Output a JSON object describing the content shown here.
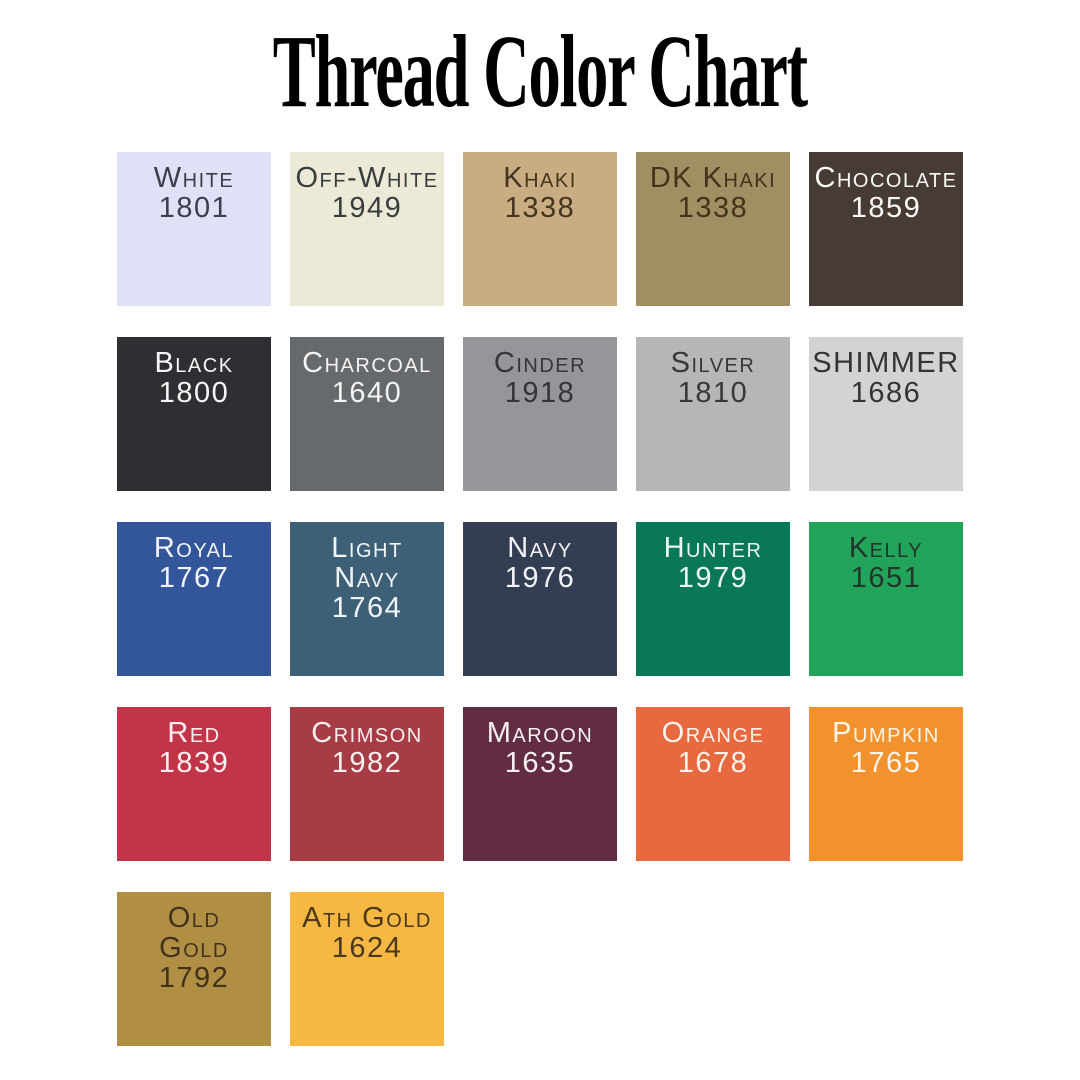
{
  "page": {
    "title": "Thread Color Chart",
    "background": "#ffffff",
    "title_color": "#000000"
  },
  "chart_data": {
    "type": "table",
    "title": "Thread Color Chart",
    "columns": 5,
    "legend_position": "none",
    "swatches": [
      {
        "name_lines": [
          "White"
        ],
        "code": "1801",
        "bg": "#dfe2f6",
        "fg": "#3c3f4a"
      },
      {
        "name_lines": [
          "Off-White"
        ],
        "code": "1949",
        "bg": "#ece9d6",
        "fg": "#3a3d40"
      },
      {
        "name_lines": [
          "Khaki"
        ],
        "code": "1338",
        "bg": "#c9ad82",
        "fg": "#45341f"
      },
      {
        "name_lines": [
          "DK Khaki"
        ],
        "code": "1338",
        "bg": "#a18e63",
        "fg": "#42331c"
      },
      {
        "name_lines": [
          "Chocolate"
        ],
        "code": "1859",
        "bg": "#473b36",
        "fg": "#fbfaf6"
      },
      {
        "name_lines": [
          "Black"
        ],
        "code": "1800",
        "bg": "#2e2f33",
        "fg": "#f6f6f6"
      },
      {
        "name_lines": [
          "Charcoal"
        ],
        "code": "1640",
        "bg": "#666a6c",
        "fg": "#f4f4f4"
      },
      {
        "name_lines": [
          "Cinder"
        ],
        "code": "1918",
        "bg": "#94969a",
        "fg": "#333539"
      },
      {
        "name_lines": [
          "Silver"
        ],
        "code": "1810",
        "bg": "#b5b7b6",
        "fg": "#35373b"
      },
      {
        "name_lines": [
          "SHIMMER"
        ],
        "code": "1686",
        "bg": "#d2d3d2",
        "fg": "#323438"
      },
      {
        "name_lines": [
          "Royal"
        ],
        "code": "1767",
        "bg": "#33569b",
        "fg": "#f3f5fa"
      },
      {
        "name_lines": [
          "Light",
          "Navy"
        ],
        "code": "1764",
        "bg": "#3e6077",
        "fg": "#f2f6f8"
      },
      {
        "name_lines": [
          "Navy"
        ],
        "code": "1976",
        "bg": "#333e52",
        "fg": "#f2f4f7"
      },
      {
        "name_lines": [
          "Hunter"
        ],
        "code": "1979",
        "bg": "#087859",
        "fg": "#ecf7f1"
      },
      {
        "name_lines": [
          "Kelly"
        ],
        "code": "1651",
        "bg": "#22a35a",
        "fg": "#21362a"
      },
      {
        "name_lines": [
          "Red"
        ],
        "code": "1839",
        "bg": "#c23549",
        "fg": "#faf0f1"
      },
      {
        "name_lines": [
          "Crimson"
        ],
        "code": "1982",
        "bg": "#a73c44",
        "fg": "#f8eff0"
      },
      {
        "name_lines": [
          "Maroon"
        ],
        "code": "1635",
        "bg": "#622c42",
        "fg": "#f7f0f2"
      },
      {
        "name_lines": [
          "Orange"
        ],
        "code": "1678",
        "bg": "#e8693f",
        "fg": "#fcf3ec"
      },
      {
        "name_lines": [
          "Pumpkin"
        ],
        "code": "1765",
        "bg": "#f1922d",
        "fg": "#fdf5e9"
      },
      {
        "name_lines": [
          "Old",
          "Gold"
        ],
        "code": "1792",
        "bg": "#b08f45",
        "fg": "#42321a"
      },
      {
        "name_lines": [
          "Ath Gold"
        ],
        "code": "1624",
        "bg": "#f7b843",
        "fg": "#4a391c"
      }
    ]
  }
}
